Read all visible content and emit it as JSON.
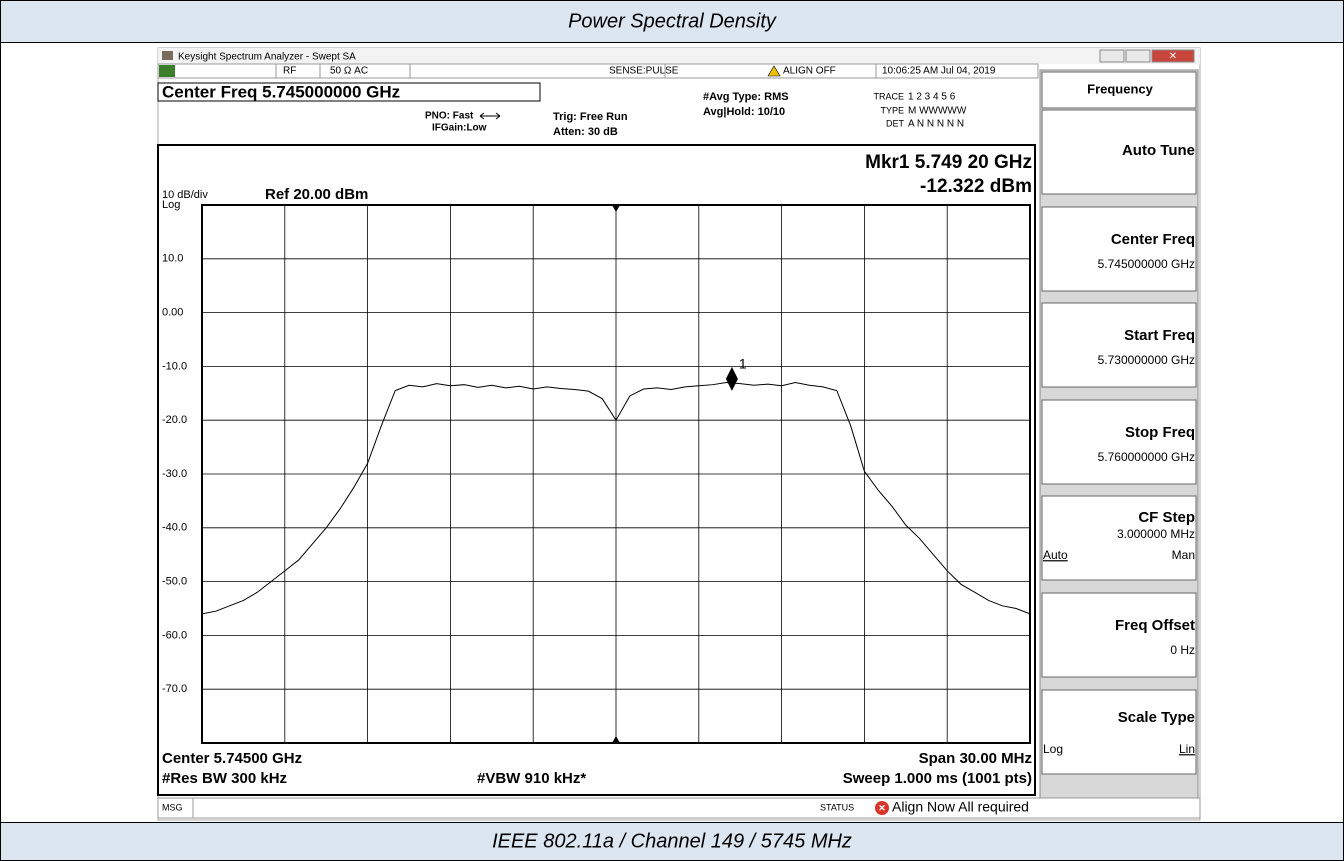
{
  "document": {
    "title": "Power Spectral Density",
    "caption": "IEEE 802.11a / Channel 149 / 5745 MHz"
  },
  "window": {
    "title": "Keysight Spectrum Analyzer - Swept SA"
  },
  "status_bar": {
    "rf": "RF",
    "impedance": "50 Ω  AC",
    "sense": "SENSE:PULSE",
    "align": "ALIGN OFF",
    "time": "10:06:25 AM Jul 04, 2019"
  },
  "settings": {
    "center_freq": "Center Freq 5.745000000 GHz",
    "pno": "PNO: Fast",
    "ifgain": "IFGain:Low",
    "trig": "Trig: Free Run",
    "atten": "Atten: 30 dB",
    "avg_type": "#Avg Type: RMS",
    "avg_hold": "Avg|Hold: 10/10",
    "trace_label": "TRACE",
    "trace_values": "1 2 3 4 5 6",
    "type_label": "TYPE",
    "type_values": "M WWWWW",
    "det_label": "DET",
    "det_values": "A N N N N N"
  },
  "softkeys": {
    "menu": "Frequency",
    "keys": [
      {
        "label": "Auto Tune"
      },
      {
        "label": "Center Freq",
        "value": "5.745000000 GHz"
      },
      {
        "label": "Start Freq",
        "value": "5.730000000 GHz"
      },
      {
        "label": "Stop Freq",
        "value": "5.760000000 GHz"
      },
      {
        "label": "CF Step",
        "value": "3.000000 MHz",
        "options": [
          "Auto",
          "Man"
        ]
      },
      {
        "label": "Freq Offset",
        "value": "0 Hz"
      },
      {
        "label": "Scale Type",
        "options": [
          "Log",
          "Lin"
        ]
      }
    ]
  },
  "message_bar": {
    "msg": "MSG",
    "status": "STATUS",
    "message": "Align Now All required"
  },
  "chart_data": {
    "type": "line",
    "scale_label": "10 dB/div",
    "scale_type": "Log",
    "ref_level": "Ref 20.00 dBm",
    "marker_readout": [
      "Mkr1 5.749 20 GHz",
      "-12.322 dBm"
    ],
    "footer": {
      "center": "Center 5.74500 GHz",
      "span": "Span 30.00 MHz",
      "rbw": "#Res BW 300 kHz",
      "vbw": "#VBW 910 kHz*",
      "sweep": "Sweep  1.000 ms (1001 pts)"
    },
    "x": [
      5.73,
      5.7305,
      5.731,
      5.7315,
      5.732,
      5.7325,
      5.733,
      5.7335,
      5.734,
      5.7345,
      5.735,
      5.7355,
      5.736,
      5.7365,
      5.737,
      5.7375,
      5.738,
      5.7385,
      5.739,
      5.7395,
      5.74,
      5.7405,
      5.741,
      5.7415,
      5.742,
      5.7425,
      5.743,
      5.7435,
      5.744,
      5.7445,
      5.745,
      5.7455,
      5.746,
      5.7465,
      5.747,
      5.7475,
      5.748,
      5.7485,
      5.749,
      5.7495,
      5.75,
      5.7505,
      5.751,
      5.7515,
      5.752,
      5.7525,
      5.753,
      5.7535,
      5.754,
      5.7545,
      5.755,
      5.7555,
      5.756,
      5.7565,
      5.757,
      5.7575,
      5.758,
      5.7585,
      5.759,
      5.7595,
      5.76
    ],
    "values": [
      -56,
      -55.5,
      -54.5,
      -53.5,
      -52,
      -50,
      -48,
      -46,
      -43,
      -40,
      -36.5,
      -32.5,
      -28,
      -21,
      -14.5,
      -13.5,
      -13.8,
      -13.2,
      -13.6,
      -13.4,
      -13.9,
      -13.5,
      -14,
      -13.7,
      -14.2,
      -13.8,
      -14.1,
      -14.3,
      -14.6,
      -16,
      -20,
      -15.5,
      -14.2,
      -14,
      -14.3,
      -13.8,
      -13.6,
      -13.4,
      -13,
      -13.2,
      -13.5,
      -13.3,
      -13.6,
      -13,
      -13.5,
      -13.8,
      -14.5,
      -21,
      -29.5,
      -33,
      -36,
      -39.5,
      -42,
      -45,
      -48,
      -50.5,
      -52,
      -53.5,
      -54.5,
      -55,
      -56
    ],
    "color": "#000000",
    "xlim": [
      5.73,
      5.76
    ],
    "xticks": [
      5.73,
      5.733,
      5.736,
      5.739,
      5.742,
      5.745,
      5.748,
      5.751,
      5.754,
      5.757,
      5.76
    ],
    "ylim": [
      -80,
      20
    ],
    "yticks": [
      {
        "value": 10,
        "label": "10.0"
      },
      {
        "value": 0,
        "label": "0.00"
      },
      {
        "value": -10,
        "label": "-10.0"
      },
      {
        "value": -20,
        "label": "-20.0"
      },
      {
        "value": -30,
        "label": "-30.0"
      },
      {
        "value": -40,
        "label": "-40.0"
      },
      {
        "value": -50,
        "label": "-50.0"
      },
      {
        "value": -60,
        "label": "-60.0"
      },
      {
        "value": -70,
        "label": "-70.0"
      }
    ],
    "grid": true,
    "marker": {
      "label": "1",
      "x": 5.7492,
      "y": -12.322
    }
  }
}
